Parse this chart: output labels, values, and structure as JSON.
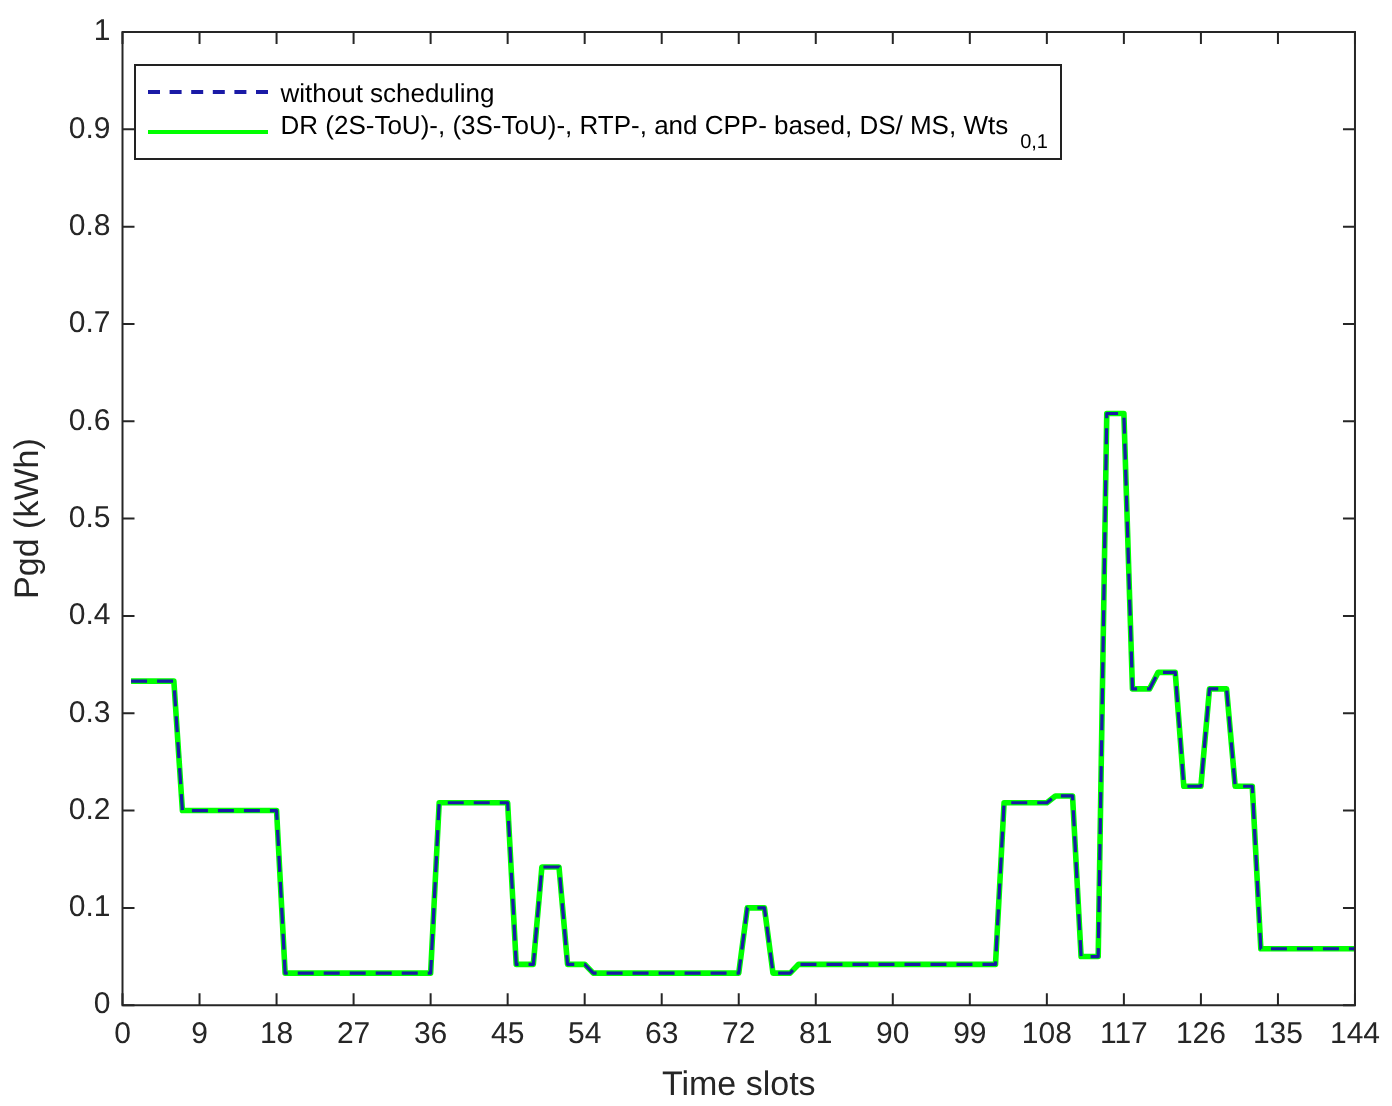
{
  "chart_data": {
    "type": "line",
    "xlabel": "Time slots",
    "ylabel": "Pgd (kWh)",
    "x": [
      1,
      6,
      7,
      18,
      19,
      36,
      37,
      45,
      46,
      48,
      49,
      51,
      52,
      54,
      55,
      72,
      73,
      75,
      76,
      78,
      79,
      102,
      103,
      108,
      109,
      111,
      112,
      114,
      115,
      117,
      118,
      120,
      121,
      123,
      124,
      126,
      127,
      129,
      130,
      132,
      133,
      144
    ],
    "series": [
      {
        "name": "without scheduling",
        "color": "#1a1aa6",
        "line_style": "dashed",
        "values": [
          0.333,
          0.333,
          0.2,
          0.2,
          0.033,
          0.033,
          0.208,
          0.208,
          0.042,
          0.042,
          0.142,
          0.142,
          0.042,
          0.042,
          0.033,
          0.033,
          0.1,
          0.1,
          0.033,
          0.033,
          0.042,
          0.042,
          0.208,
          0.208,
          0.215,
          0.215,
          0.05,
          0.05,
          0.608,
          0.608,
          0.325,
          0.325,
          0.342,
          0.342,
          0.225,
          0.225,
          0.325,
          0.325,
          0.225,
          0.225,
          0.058,
          0.058
        ]
      },
      {
        "name": "DR (2S-ToU)-, (3S-ToU)-, RTP-, and CPP- based, DS/ MS, Wts$_{0,1}$",
        "color": "#00ff00",
        "line_style": "solid",
        "values": [
          0.333,
          0.333,
          0.2,
          0.2,
          0.033,
          0.033,
          0.208,
          0.208,
          0.042,
          0.042,
          0.142,
          0.142,
          0.042,
          0.042,
          0.033,
          0.033,
          0.1,
          0.1,
          0.033,
          0.033,
          0.042,
          0.042,
          0.208,
          0.208,
          0.215,
          0.215,
          0.05,
          0.05,
          0.608,
          0.608,
          0.325,
          0.325,
          0.342,
          0.342,
          0.225,
          0.225,
          0.325,
          0.325,
          0.225,
          0.225,
          0.058,
          0.058
        ]
      }
    ],
    "xlim": [
      0,
      144
    ],
    "xticks": [
      0,
      9,
      18,
      27,
      36,
      45,
      54,
      63,
      72,
      81,
      90,
      99,
      108,
      117,
      126,
      135,
      144
    ],
    "ylim": [
      0,
      1
    ],
    "yticks": [
      0,
      0.1,
      0.2,
      0.3,
      0.4,
      0.5,
      0.6,
      0.7,
      0.8,
      0.9,
      1
    ],
    "grid": false,
    "legend": "top left",
    "marker": "none"
  }
}
